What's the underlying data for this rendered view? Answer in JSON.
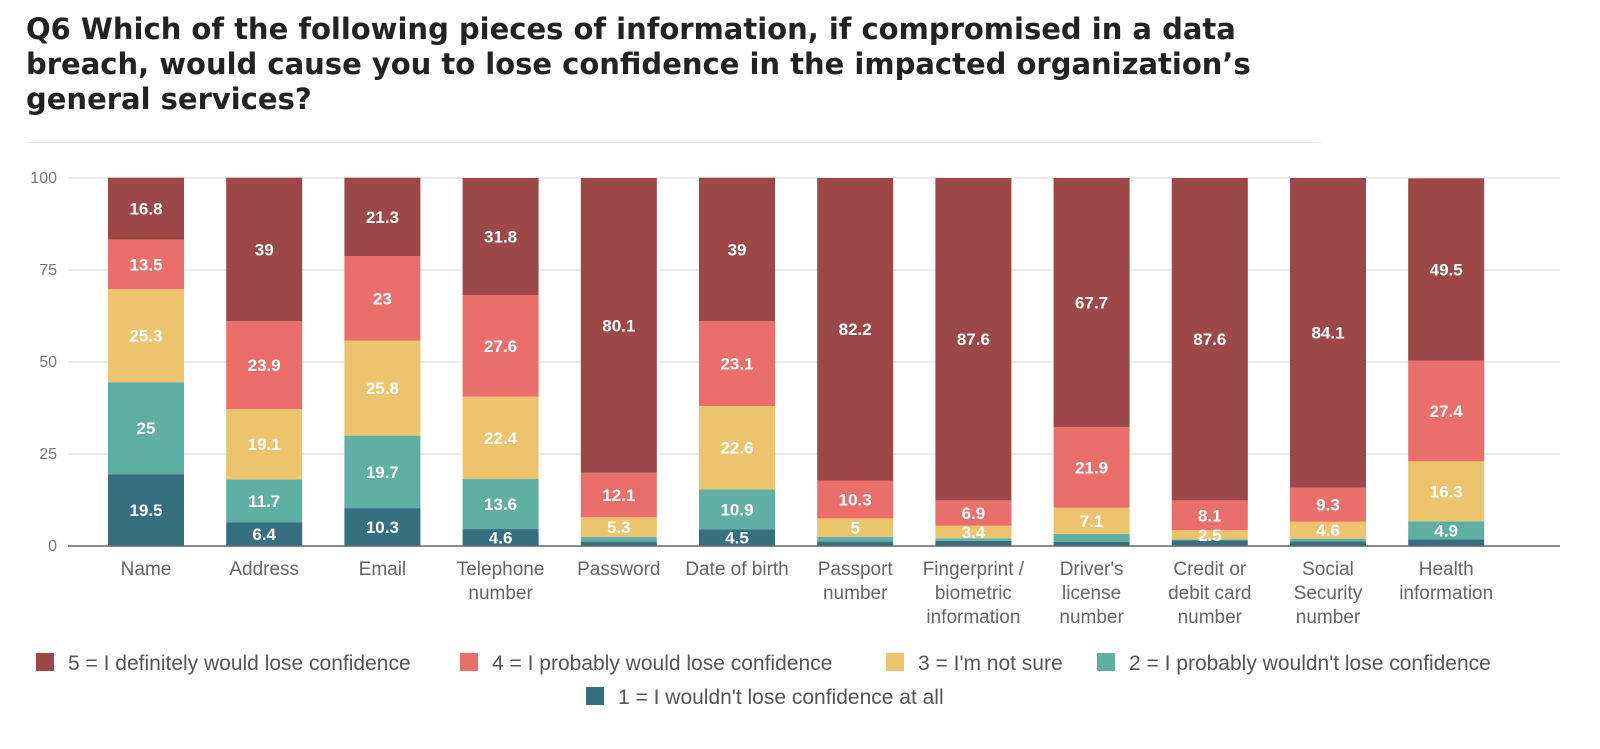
{
  "title": "Q6 Which of the following pieces of information, if compromised in a data breach, would cause you to lose confidence in the impacted organization’s general services?",
  "chart_data": {
    "type": "bar",
    "stacked": true,
    "title": "Q6 Which of the following pieces of information, if compromised in a data breach, would cause you to lose confidence in the impacted organization’s general services?",
    "xlabel": "",
    "ylabel": "",
    "ylim": [
      0,
      100
    ],
    "yticks": [
      0,
      25,
      50,
      75,
      100
    ],
    "grid": true,
    "legend_position": "bottom",
    "categories": [
      [
        "Name"
      ],
      [
        "Address"
      ],
      [
        "Email"
      ],
      [
        "Telephone",
        "number"
      ],
      [
        "Password"
      ],
      [
        "Date of birth"
      ],
      [
        "Passport",
        "number"
      ],
      [
        "Fingerprint /",
        "biometric",
        "information"
      ],
      [
        "Driver's",
        "license",
        "number"
      ],
      [
        "Credit or",
        "debit card",
        "number"
      ],
      [
        "Social",
        "Security",
        "number"
      ],
      [
        "Health",
        "information"
      ]
    ],
    "series": [
      {
        "name": "1 = I wouldn't lose confidence at all",
        "color": "#356f80",
        "values": [
          19.5,
          6.4,
          10.3,
          4.6,
          1.2,
          4.5,
          1.2,
          1.4,
          1.1,
          1.5,
          1.3,
          1.8
        ],
        "shown_labels": [
          "19.5",
          "6.4",
          "10.3",
          "4.6",
          "",
          "4.5",
          "",
          "",
          "",
          "",
          "",
          ""
        ]
      },
      {
        "name": "2 = I probably wouldn't lose confidence",
        "color": "#5fafa5",
        "values": [
          25,
          11.7,
          19.7,
          13.6,
          1.3,
          10.9,
          1.3,
          0.7,
          2.2,
          0.3,
          0.7,
          4.9
        ],
        "shown_labels": [
          "25",
          "11.7",
          "19.7",
          "13.6",
          "",
          "10.9",
          "",
          "",
          "",
          "",
          "",
          "4.9"
        ]
      },
      {
        "name": "3 = I'm not sure",
        "color": "#ecc46d",
        "values": [
          25.3,
          19.1,
          25.8,
          22.4,
          5.3,
          22.6,
          5,
          3.4,
          7.1,
          2.5,
          4.6,
          16.3
        ],
        "shown_labels": [
          "25.3",
          "19.1",
          "25.8",
          "22.4",
          "5.3",
          "22.6",
          "5",
          "3.4",
          "7.1",
          "2.5",
          "4.6",
          "16.3"
        ]
      },
      {
        "name": "4 = I probably would lose confidence",
        "color": "#ea6e6a",
        "values": [
          13.5,
          23.9,
          23,
          27.6,
          12.1,
          23.1,
          10.3,
          6.9,
          21.9,
          8.1,
          9.3,
          27.4
        ],
        "shown_labels": [
          "13.5",
          "23.9",
          "23",
          "27.6",
          "12.1",
          "23.1",
          "10.3",
          "6.9",
          "21.9",
          "8.1",
          "9.3",
          "27.4"
        ]
      },
      {
        "name": "5 = I definitely would lose confidence",
        "color": "#9c4848",
        "values": [
          16.8,
          39,
          21.3,
          31.8,
          80.1,
          39,
          82.2,
          87.6,
          67.7,
          87.6,
          84.1,
          49.5
        ],
        "shown_labels": [
          "16.8",
          "39",
          "21.3",
          "31.8",
          "80.1",
          "39",
          "82.2",
          "87.6",
          "67.7",
          "87.6",
          "84.1",
          "49.5"
        ]
      }
    ],
    "legend_order": [
      4,
      3,
      2,
      1,
      0
    ]
  }
}
